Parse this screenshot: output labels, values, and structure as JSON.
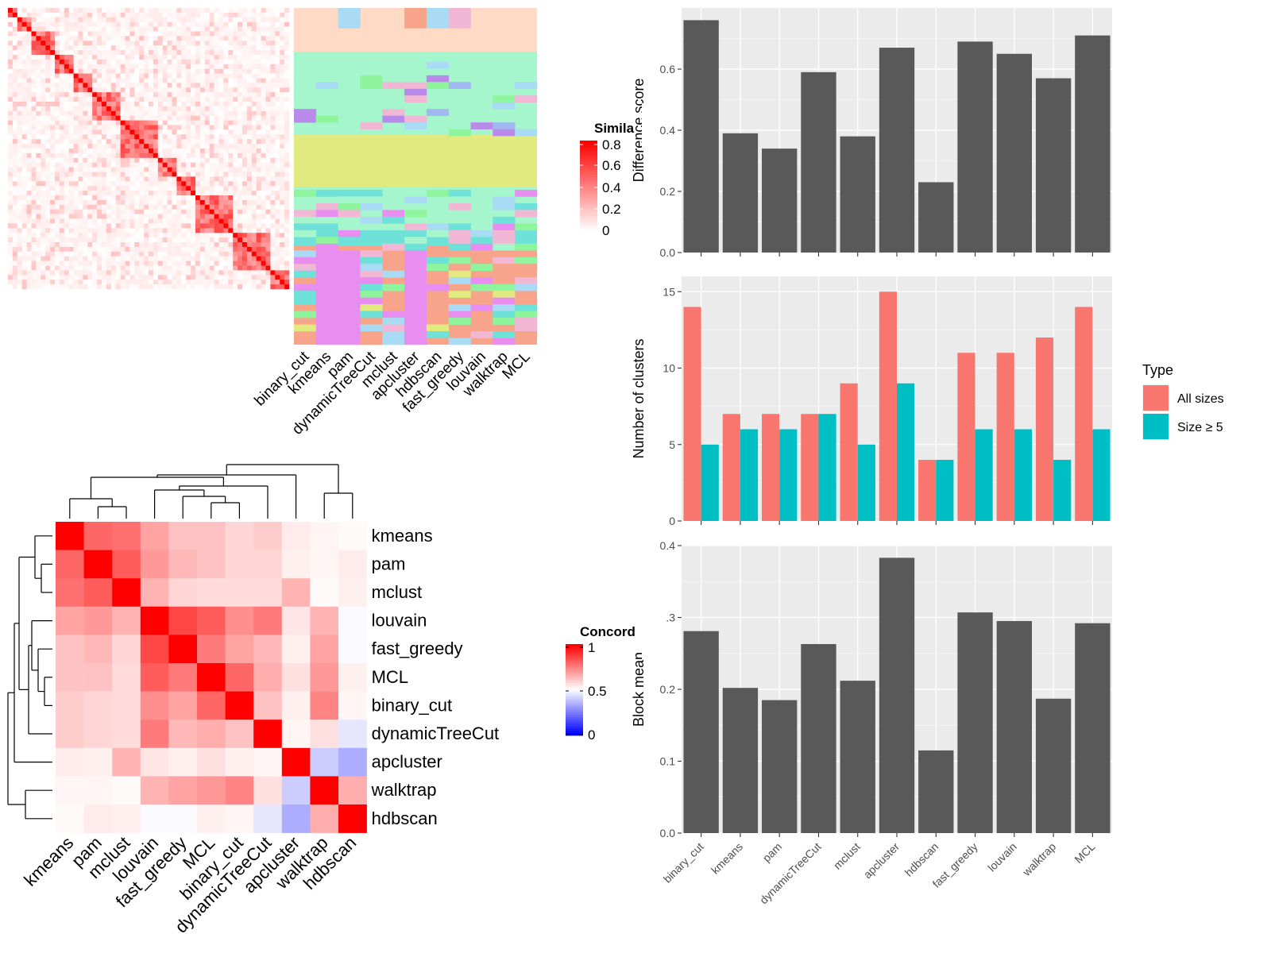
{
  "methods": [
    "binary_cut",
    "kmeans",
    "pam",
    "dynamicTreeCut",
    "mclust",
    "apcluster",
    "hdbscan",
    "fast_greedy",
    "louvain",
    "walktrap",
    "MCL"
  ],
  "top_heatmap": {
    "legend_title": "Simila",
    "legend_ticks": [
      "0.8",
      "0.6",
      "0.4",
      "0.2",
      "0"
    ]
  },
  "concordance": {
    "legend_title": "Concord",
    "legend_ticks": [
      "1",
      "0.5",
      "0"
    ],
    "row_order": [
      "kmeans",
      "pam",
      "mclust",
      "louvain",
      "fast_greedy",
      "MCL",
      "binary_cut",
      "dynamicTreeCut",
      "apcluster",
      "walktrap",
      "hdbscan"
    ],
    "col_order": [
      "kmeans",
      "pam",
      "mclust",
      "louvain",
      "fast_greedy",
      "MCL",
      "binary_cut",
      "dynamicTreeCut",
      "apcluster",
      "walktrap",
      "hdbscan"
    ],
    "matrix": [
      [
        1.0,
        0.8,
        0.78,
        0.68,
        0.62,
        0.62,
        0.58,
        0.6,
        0.54,
        0.52,
        0.51
      ],
      [
        0.8,
        1.0,
        0.82,
        0.7,
        0.64,
        0.62,
        0.58,
        0.58,
        0.53,
        0.52,
        0.54
      ],
      [
        0.78,
        0.82,
        1.0,
        0.65,
        0.58,
        0.57,
        0.57,
        0.57,
        0.65,
        0.51,
        0.53
      ],
      [
        0.68,
        0.7,
        0.65,
        1.0,
        0.86,
        0.82,
        0.72,
        0.76,
        0.55,
        0.65,
        0.49
      ],
      [
        0.62,
        0.64,
        0.58,
        0.86,
        1.0,
        0.76,
        0.68,
        0.64,
        0.53,
        0.68,
        0.49
      ],
      [
        0.62,
        0.62,
        0.57,
        0.82,
        0.76,
        1.0,
        0.8,
        0.66,
        0.56,
        0.7,
        0.53
      ],
      [
        0.6,
        0.58,
        0.57,
        0.72,
        0.68,
        0.8,
        1.0,
        0.62,
        0.53,
        0.74,
        0.52
      ],
      [
        0.6,
        0.58,
        0.57,
        0.76,
        0.64,
        0.66,
        0.62,
        1.0,
        0.52,
        0.56,
        0.45
      ],
      [
        0.54,
        0.53,
        0.65,
        0.55,
        0.53,
        0.56,
        0.53,
        0.52,
        1.0,
        0.4,
        0.34
      ],
      [
        0.52,
        0.52,
        0.51,
        0.65,
        0.68,
        0.7,
        0.74,
        0.56,
        0.4,
        1.0,
        0.66
      ],
      [
        0.51,
        0.54,
        0.53,
        0.49,
        0.49,
        0.53,
        0.52,
        0.45,
        0.34,
        0.66,
        1.0
      ]
    ]
  },
  "chart_data": [
    {
      "type": "bar",
      "ylabel": "Difference score",
      "categories": [
        "binary_cut",
        "kmeans",
        "pam",
        "dynamicTreeCut",
        "mclust",
        "apcluster",
        "hdbscan",
        "fast_greedy",
        "louvain",
        "walktrap",
        "MCL"
      ],
      "values": [
        0.76,
        0.39,
        0.34,
        0.59,
        0.38,
        0.67,
        0.23,
        0.69,
        0.65,
        0.57,
        0.71
      ],
      "ylim": [
        0,
        0.8
      ],
      "yticks": [
        "0.0",
        "0.2",
        "0.4",
        "0.6"
      ],
      "grid": true
    },
    {
      "type": "bar",
      "ylabel": "Number of clusters",
      "categories": [
        "binary_cut",
        "kmeans",
        "pam",
        "dynamicTreeCut",
        "mclust",
        "apcluster",
        "hdbscan",
        "fast_greedy",
        "louvain",
        "walktrap",
        "MCL"
      ],
      "series": [
        {
          "name": "All sizes",
          "values": [
            14,
            7,
            7,
            7,
            9,
            15,
            4,
            11,
            11,
            12,
            14
          ],
          "color": "#F8766D"
        },
        {
          "name": "Size ≥ 5",
          "values": [
            5,
            6,
            6,
            7,
            5,
            9,
            4,
            6,
            6,
            4,
            6
          ],
          "color": "#00BFC4"
        }
      ],
      "legend_title": "Type",
      "ylim": [
        0,
        16
      ],
      "yticks": [
        "0",
        "5",
        "10",
        "15"
      ],
      "grid": true
    },
    {
      "type": "bar",
      "ylabel": "Block mean",
      "categories": [
        "binary_cut",
        "kmeans",
        "pam",
        "dynamicTreeCut",
        "mclust",
        "apcluster",
        "hdbscan",
        "fast_greedy",
        "louvain",
        "walktrap",
        "MCL"
      ],
      "values": [
        0.281,
        0.202,
        0.185,
        0.263,
        0.212,
        0.383,
        0.115,
        0.307,
        0.295,
        0.187,
        0.292
      ],
      "ylim": [
        0,
        0.4
      ],
      "yticks": [
        "0.0",
        "0.1",
        "0.2",
        "0.3",
        "0.4"
      ],
      "grid": true
    }
  ]
}
